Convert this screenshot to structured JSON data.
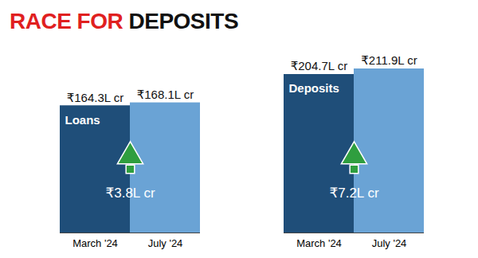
{
  "chart_data": {
    "type": "bar",
    "title": "RACE FOR DEPOSITS",
    "categories": [
      "Loans",
      "Deposits"
    ],
    "series": [
      {
        "name": "March '24",
        "color": "#1f4e79",
        "values": [
          164.3,
          204.7
        ],
        "value_labels": [
          "₹164.3L cr",
          "₹204.7L cr"
        ]
      },
      {
        "name": "July '24",
        "color": "#6aa3d5",
        "values": [
          168.1,
          211.9
        ],
        "value_labels": [
          "₹168.1L cr",
          "₹211.9L cr"
        ]
      }
    ],
    "annotations": [
      {
        "category": "Loans",
        "label": "₹3.8L cr"
      },
      {
        "category": "Deposits",
        "label": "₹7.2L cr"
      }
    ],
    "ylim": [
      0,
      211.9
    ],
    "yticks": [],
    "data_labels": true,
    "tick_labels": "x",
    "grid": false
  }
}
